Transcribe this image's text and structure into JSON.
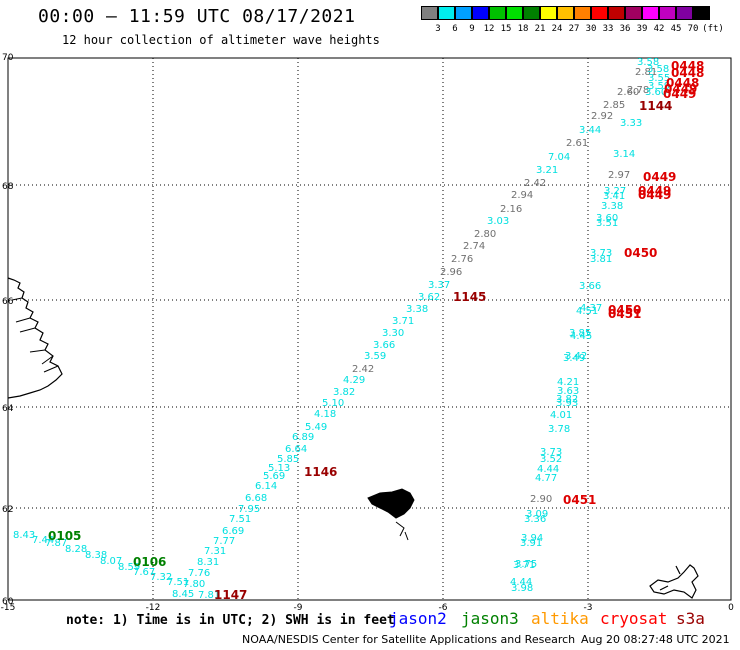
{
  "header": {
    "title": "00:00 – 11:59 UTC 08/17/2021",
    "subtitle": "12 hour collection of altimeter wave heights"
  },
  "colorbar": {
    "colors": [
      "#808080",
      "#00eeee",
      "#00a0ff",
      "#0000ff",
      "#00c000",
      "#00e000",
      "#008000",
      "#ffff00",
      "#ffc000",
      "#ff8000",
      "#ff0000",
      "#c00000",
      "#a00060",
      "#ff00ff",
      "#c000c0",
      "#8000a0",
      "#000000"
    ],
    "labels": [
      "3",
      "6",
      "9",
      "12",
      "15",
      "18",
      "21",
      "24",
      "27",
      "30",
      "33",
      "36",
      "39",
      "42",
      "45",
      "70",
      "(ft)"
    ]
  },
  "axes": {
    "y_ticks": [
      "70",
      "68",
      "66",
      "64",
      "62",
      "60"
    ],
    "x_ticks": [
      "-15",
      "-12",
      "-9",
      "-6",
      "-3",
      "0"
    ]
  },
  "map_data": {
    "colors": {
      "grey": "#707070",
      "cyan": "#00e0e0",
      "green": "#008000",
      "red": "#dd0000",
      "darkred": "#990000"
    },
    "swh_points": [
      {
        "v": "8.43",
        "c": "cyan"
      },
      {
        "v": "7.44",
        "c": "cyan"
      },
      {
        "v": "7.87",
        "c": "cyan"
      },
      {
        "v": "8.28",
        "c": "cyan"
      },
      {
        "v": "8.38",
        "c": "cyan"
      },
      {
        "v": "8.07",
        "c": "cyan"
      },
      {
        "v": "8.59",
        "c": "cyan"
      },
      {
        "v": "7.67",
        "c": "cyan"
      },
      {
        "v": "7.32",
        "c": "cyan"
      },
      {
        "v": "7.51",
        "c": "cyan"
      },
      {
        "v": "7.80",
        "c": "cyan"
      },
      {
        "v": "8.45",
        "c": "cyan"
      },
      {
        "v": "7.81",
        "c": "cyan"
      },
      {
        "v": "7.76",
        "c": "cyan"
      },
      {
        "v": "8.31",
        "c": "cyan"
      },
      {
        "v": "7.31",
        "c": "cyan"
      },
      {
        "v": "7.77",
        "c": "cyan"
      },
      {
        "v": "6.69",
        "c": "cyan"
      },
      {
        "v": "7.51",
        "c": "cyan"
      },
      {
        "v": "7.95",
        "c": "cyan"
      },
      {
        "v": "6.68",
        "c": "cyan"
      },
      {
        "v": "6.14",
        "c": "cyan"
      },
      {
        "v": "5.69",
        "c": "cyan"
      },
      {
        "v": "5.13",
        "c": "cyan"
      },
      {
        "v": "5.85",
        "c": "cyan"
      },
      {
        "v": "6.64",
        "c": "cyan"
      },
      {
        "v": "6.89",
        "c": "cyan"
      },
      {
        "v": "5.49",
        "c": "cyan"
      },
      {
        "v": "4.18",
        "c": "cyan"
      },
      {
        "v": "5.10",
        "c": "cyan"
      },
      {
        "v": "3.82",
        "c": "cyan"
      },
      {
        "v": "4.29",
        "c": "cyan"
      },
      {
        "v": "2.42",
        "c": "grey"
      },
      {
        "v": "3.59",
        "c": "cyan"
      },
      {
        "v": "3.66",
        "c": "cyan"
      },
      {
        "v": "3.30",
        "c": "cyan"
      },
      {
        "v": "3.71",
        "c": "cyan"
      },
      {
        "v": "3.38",
        "c": "cyan"
      },
      {
        "v": "3.62",
        "c": "cyan"
      },
      {
        "v": "3.37",
        "c": "cyan"
      },
      {
        "v": "2.96",
        "c": "grey"
      },
      {
        "v": "2.76",
        "c": "grey"
      },
      {
        "v": "2.74",
        "c": "grey"
      },
      {
        "v": "2.80",
        "c": "grey"
      },
      {
        "v": "3.03",
        "c": "cyan"
      },
      {
        "v": "2.16",
        "c": "grey"
      },
      {
        "v": "2.94",
        "c": "grey"
      },
      {
        "v": "2.42",
        "c": "grey"
      },
      {
        "v": "3.21",
        "c": "cyan"
      },
      {
        "v": "7.04",
        "c": "cyan"
      },
      {
        "v": "2.61",
        "c": "grey"
      },
      {
        "v": "3.44",
        "c": "cyan"
      },
      {
        "v": "2.92",
        "c": "grey"
      },
      {
        "v": "2.85",
        "c": "grey"
      },
      {
        "v": "2.60",
        "c": "grey"
      },
      {
        "v": "2.78",
        "c": "grey"
      },
      {
        "v": "2.81",
        "c": "grey"
      },
      {
        "v": "3.58",
        "c": "cyan"
      },
      {
        "v": "3.58",
        "c": "cyan"
      },
      {
        "v": "3.55",
        "c": "cyan"
      },
      {
        "v": "3.59",
        "c": "cyan"
      },
      {
        "v": "3.60",
        "c": "cyan"
      },
      {
        "v": "3.33",
        "c": "cyan"
      },
      {
        "v": "3.14",
        "c": "cyan"
      },
      {
        "v": "2.97",
        "c": "grey"
      },
      {
        "v": "3.27",
        "c": "cyan"
      },
      {
        "v": "3.41",
        "c": "cyan"
      },
      {
        "v": "3.38",
        "c": "cyan"
      },
      {
        "v": "3.60",
        "c": "cyan"
      },
      {
        "v": "3.51",
        "c": "cyan"
      },
      {
        "v": "3.73",
        "c": "cyan"
      },
      {
        "v": "3.81",
        "c": "cyan"
      },
      {
        "v": "3.66",
        "c": "cyan"
      },
      {
        "v": "4.37",
        "c": "cyan"
      },
      {
        "v": "4.51",
        "c": "cyan"
      },
      {
        "v": "3.85",
        "c": "cyan"
      },
      {
        "v": "4.45",
        "c": "cyan"
      },
      {
        "v": "3.42",
        "c": "cyan"
      },
      {
        "v": "3.49",
        "c": "cyan"
      },
      {
        "v": "4.21",
        "c": "cyan"
      },
      {
        "v": "3.63",
        "c": "cyan"
      },
      {
        "v": "3.82",
        "c": "cyan"
      },
      {
        "v": "3.93",
        "c": "cyan"
      },
      {
        "v": "4.01",
        "c": "cyan"
      },
      {
        "v": "3.78",
        "c": "cyan"
      },
      {
        "v": "3.73",
        "c": "cyan"
      },
      {
        "v": "3.52",
        "c": "cyan"
      },
      {
        "v": "4.44",
        "c": "cyan"
      },
      {
        "v": "4.77",
        "c": "cyan"
      },
      {
        "v": "2.90",
        "c": "grey"
      },
      {
        "v": "3.09",
        "c": "cyan"
      },
      {
        "v": "3.36",
        "c": "cyan"
      },
      {
        "v": "3.94",
        "c": "cyan"
      },
      {
        "v": "3.91",
        "c": "cyan"
      },
      {
        "v": "3.75",
        "c": "cyan"
      },
      {
        "v": "3.71",
        "c": "cyan"
      },
      {
        "v": "4.44",
        "c": "cyan"
      },
      {
        "v": "3.98",
        "c": "cyan"
      }
    ],
    "time_labels": [
      {
        "t": "0105",
        "c": "green"
      },
      {
        "t": "0106",
        "c": "green"
      },
      {
        "t": "1147",
        "c": "darkred"
      },
      {
        "t": "1146",
        "c": "darkred"
      },
      {
        "t": "1145",
        "c": "darkred"
      },
      {
        "t": "1144",
        "c": "darkred"
      },
      {
        "t": "0448",
        "c": "red"
      },
      {
        "t": "0448",
        "c": "red"
      },
      {
        "t": "0448",
        "c": "red"
      },
      {
        "t": "0449",
        "c": "red"
      },
      {
        "t": "0449",
        "c": "red"
      },
      {
        "t": "0449",
        "c": "red"
      },
      {
        "t": "0449",
        "c": "red"
      },
      {
        "t": "0449",
        "c": "red"
      },
      {
        "t": "0450",
        "c": "red"
      },
      {
        "t": "0450",
        "c": "red"
      },
      {
        "t": "0451",
        "c": "red"
      },
      {
        "t": "0451",
        "c": "red"
      }
    ]
  },
  "footer": {
    "note": "note: 1) Time is in UTC; 2) SWH is in feet",
    "legend": [
      {
        "name": "jason2",
        "color": "#0000ff"
      },
      {
        "name": "jason3",
        "color": "#008000"
      },
      {
        "name": "altika",
        "color": "#ff9900"
      },
      {
        "name": "cryosat",
        "color": "#ff0000"
      },
      {
        "name": "s3a",
        "color": "#990000"
      }
    ],
    "credit": "NOAA/NESDIS Center for Satellite Applications and Research",
    "timestamp": "Aug 20 08:27:48 UTC 2021"
  }
}
